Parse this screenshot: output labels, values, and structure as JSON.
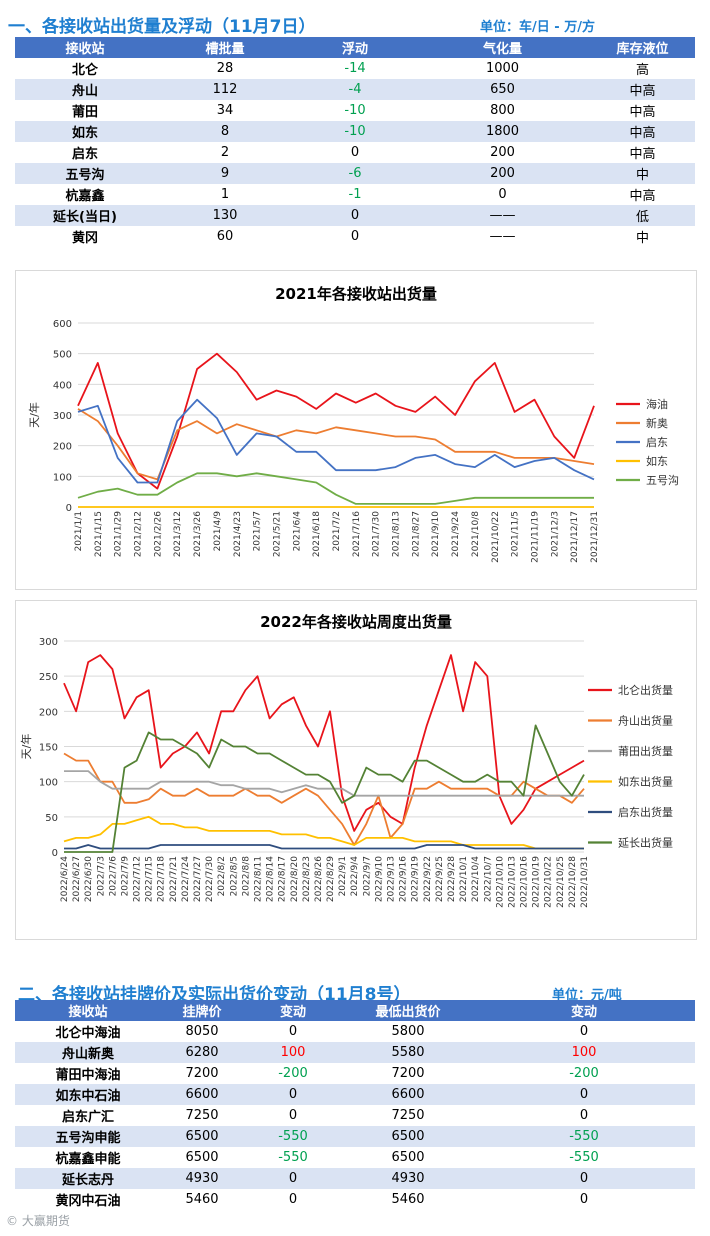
{
  "section1": {
    "title": "一、各接收站出货量及浮动（11月7日）",
    "unit": "单位：车/日 - 万/方",
    "headers": [
      "接收站",
      "槽批量",
      "浮动",
      "气化量",
      "库存液位"
    ],
    "rows": [
      {
        "name": "北仑",
        "trucks": "28",
        "change": "-14",
        "gas": "1000",
        "level": "高"
      },
      {
        "name": "舟山",
        "trucks": "112",
        "change": "-4",
        "gas": "650",
        "level": "中高"
      },
      {
        "name": "莆田",
        "trucks": "34",
        "change": "-10",
        "gas": "800",
        "level": "中高"
      },
      {
        "name": "如东",
        "trucks": "8",
        "change": "-10",
        "gas": "1800",
        "level": "中高"
      },
      {
        "name": "启东",
        "trucks": "2",
        "change": "0",
        "gas": "200",
        "level": "中高"
      },
      {
        "name": "五号沟",
        "trucks": "9",
        "change": "-6",
        "gas": "200",
        "level": "中"
      },
      {
        "name": "杭嘉鑫",
        "trucks": "1",
        "change": "-1",
        "gas": "0",
        "level": "中高"
      },
      {
        "name": "延长(当日)",
        "trucks": "130",
        "change": "0",
        "gas": "——",
        "level": "低"
      },
      {
        "name": "黄冈",
        "trucks": "60",
        "change": "0",
        "gas": "——",
        "level": "中"
      }
    ]
  },
  "chart1": {
    "chart_data": {
      "type": "line",
      "title": "2021年各接收站出货量",
      "ylabel": "天/年",
      "ylim": [
        0,
        600
      ],
      "yticks": [
        0,
        100,
        200,
        300,
        400,
        500,
        600
      ],
      "x": [
        "2021/1/1",
        "2021/1/15",
        "2021/1/29",
        "2021/2/12",
        "2021/2/26",
        "2021/3/12",
        "2021/3/26",
        "2021/4/9",
        "2021/4/23",
        "2021/5/7",
        "2021/5/21",
        "2021/6/4",
        "2021/6/18",
        "2021/7/2",
        "2021/7/16",
        "2021/7/30",
        "2021/8/13",
        "2021/8/27",
        "2021/9/10",
        "2021/9/24",
        "2021/10/8",
        "2021/10/22",
        "2021/11/5",
        "2021/11/19",
        "2021/12/3",
        "2021/12/17",
        "2021/12/31"
      ],
      "grid": true,
      "legend": "right",
      "series": [
        {
          "name": "海油",
          "color": "#e8141b",
          "values": [
            330,
            470,
            240,
            110,
            60,
            230,
            450,
            500,
            440,
            350,
            380,
            360,
            320,
            370,
            340,
            370,
            330,
            310,
            360,
            300,
            410,
            470,
            310,
            350,
            230,
            160,
            330
          ]
        },
        {
          "name": "新奥",
          "color": "#ed7d31",
          "values": [
            320,
            280,
            200,
            110,
            90,
            250,
            280,
            240,
            270,
            250,
            230,
            250,
            240,
            260,
            250,
            240,
            230,
            230,
            220,
            180,
            180,
            180,
            160,
            160,
            160,
            150,
            140
          ]
        },
        {
          "name": "启东",
          "color": "#4472c4",
          "values": [
            310,
            330,
            160,
            80,
            80,
            280,
            350,
            290,
            170,
            240,
            230,
            180,
            180,
            120,
            120,
            120,
            130,
            160,
            170,
            140,
            130,
            170,
            130,
            150,
            160,
            120,
            90
          ]
        },
        {
          "name": "如东",
          "color": "#ffc000",
          "values": [
            0,
            0,
            0,
            0,
            0,
            0,
            0,
            0,
            0,
            0,
            0,
            0,
            0,
            0,
            0,
            0,
            0,
            0,
            0,
            0,
            0,
            0,
            0,
            0,
            0,
            0,
            0
          ]
        },
        {
          "name": "五号沟",
          "color": "#70ad47",
          "values": [
            30,
            50,
            60,
            40,
            40,
            80,
            110,
            110,
            100,
            110,
            100,
            90,
            80,
            40,
            10,
            10,
            10,
            10,
            10,
            20,
            30,
            30,
            30,
            30,
            30,
            30,
            30
          ]
        }
      ]
    }
  },
  "chart2": {
    "chart_data": {
      "type": "line",
      "title": "2022年各接收站周度出货量",
      "ylabel": "天/年",
      "ylim": [
        0,
        300
      ],
      "yticks": [
        0,
        50,
        100,
        150,
        200,
        250,
        300
      ],
      "x": [
        "2022/6/24",
        "2022/6/27",
        "2022/6/30",
        "2022/7/3",
        "2022/7/6",
        "2022/7/9",
        "2022/7/12",
        "2022/7/15",
        "2022/7/18",
        "2022/7/21",
        "2022/7/24",
        "2022/7/27",
        "2022/7/30",
        "2022/8/2",
        "2022/8/5",
        "2022/8/8",
        "2022/8/11",
        "2022/8/14",
        "2022/8/17",
        "2022/8/20",
        "2022/8/23",
        "2022/8/26",
        "2022/8/29",
        "2022/9/1",
        "2022/9/4",
        "2022/9/7",
        "2022/9/10",
        "2022/9/13",
        "2022/9/16",
        "2022/9/19",
        "2022/9/22",
        "2022/9/25",
        "2022/9/28",
        "2022/10/1",
        "2022/10/4",
        "2022/10/7",
        "2022/10/10",
        "2022/10/13",
        "2022/10/16",
        "2022/10/19",
        "2022/10/22",
        "2022/10/25",
        "2022/10/28",
        "2022/10/31"
      ],
      "grid": true,
      "legend": "right",
      "series": [
        {
          "name": "北仑出货量",
          "color": "#e8141b",
          "values": [
            240,
            200,
            270,
            280,
            260,
            190,
            220,
            230,
            120,
            140,
            150,
            170,
            140,
            200,
            200,
            230,
            250,
            190,
            210,
            220,
            180,
            150,
            200,
            80,
            30,
            60,
            70,
            50,
            40,
            120,
            180,
            230,
            280,
            200,
            270,
            250,
            80,
            40,
            60,
            90,
            100,
            110,
            120,
            130
          ]
        },
        {
          "name": "舟山出货量",
          "color": "#ed7d31",
          "values": [
            140,
            130,
            130,
            100,
            100,
            70,
            70,
            75,
            90,
            80,
            80,
            90,
            80,
            80,
            80,
            90,
            80,
            80,
            70,
            80,
            90,
            80,
            60,
            40,
            10,
            40,
            80,
            20,
            40,
            90,
            90,
            100,
            90,
            90,
            90,
            90,
            80,
            80,
            100,
            90,
            80,
            80,
            70,
            90
          ]
        },
        {
          "name": "莆田出货量",
          "color": "#a5a5a5",
          "values": [
            115,
            115,
            115,
            100,
            90,
            90,
            90,
            90,
            100,
            100,
            100,
            100,
            100,
            95,
            95,
            90,
            90,
            90,
            85,
            90,
            95,
            90,
            90,
            90,
            80,
            80,
            80,
            80,
            80,
            80,
            80,
            80,
            80,
            80,
            80,
            80,
            80,
            80,
            80,
            80,
            80,
            80,
            80,
            80
          ]
        },
        {
          "name": "如东出货量",
          "color": "#ffc000",
          "values": [
            15,
            20,
            20,
            25,
            40,
            40,
            45,
            50,
            40,
            40,
            35,
            35,
            30,
            30,
            30,
            30,
            30,
            30,
            25,
            25,
            25,
            20,
            20,
            15,
            10,
            20,
            20,
            20,
            20,
            15,
            15,
            15,
            15,
            10,
            10,
            10,
            10,
            10,
            10,
            5,
            5,
            5,
            5,
            5
          ]
        },
        {
          "name": "启东出货量",
          "color": "#2f4d7e",
          "values": [
            5,
            5,
            10,
            5,
            5,
            5,
            5,
            5,
            10,
            10,
            10,
            10,
            10,
            10,
            10,
            10,
            10,
            10,
            5,
            5,
            5,
            5,
            5,
            5,
            5,
            5,
            5,
            5,
            5,
            5,
            10,
            10,
            10,
            10,
            5,
            5,
            5,
            5,
            5,
            5,
            5,
            5,
            5,
            5
          ]
        },
        {
          "name": "延长出货量",
          "color": "#548235",
          "values": [
            0,
            0,
            0,
            0,
            0,
            120,
            130,
            170,
            160,
            160,
            150,
            140,
            120,
            160,
            150,
            150,
            140,
            140,
            130,
            120,
            110,
            110,
            100,
            70,
            80,
            120,
            110,
            110,
            100,
            130,
            130,
            120,
            110,
            100,
            100,
            110,
            100,
            100,
            80,
            180,
            140,
            100,
            80,
            110
          ]
        }
      ]
    }
  },
  "section2": {
    "title": "二、各接收站挂牌价及实际出货价变动（11月8号）",
    "unit": "单位：元/吨",
    "headers": [
      "接收站",
      "挂牌价",
      "变动",
      "最低出货价",
      "变动"
    ],
    "rows": [
      {
        "name": "北仑中海油",
        "list": "8050",
        "change": "0",
        "low": "5800",
        "change2": "0"
      },
      {
        "name": "舟山新奥",
        "list": "6280",
        "change": "100",
        "low": "5580",
        "change2": "100"
      },
      {
        "name": "莆田中海油",
        "list": "7200",
        "change": "-200",
        "low": "7200",
        "change2": "-200"
      },
      {
        "name": "如东中石油",
        "list": "6600",
        "change": "0",
        "low": "6600",
        "change2": "0"
      },
      {
        "name": "启东广汇",
        "list": "7250",
        "change": "0",
        "low": "7250",
        "change2": "0"
      },
      {
        "name": "五号沟申能",
        "list": "6500",
        "change": "-550",
        "low": "6500",
        "change2": "-550"
      },
      {
        "name": "杭嘉鑫申能",
        "list": "6500",
        "change": "-550",
        "low": "6500",
        "change2": "-550"
      },
      {
        "name": "延长志丹",
        "list": "4930",
        "change": "0",
        "low": "4930",
        "change2": "0"
      },
      {
        "name": "黄冈中石油",
        "list": "5460",
        "change": "0",
        "low": "5460",
        "change2": "0"
      }
    ]
  },
  "footer": {
    "text": "© 大赢期货"
  }
}
